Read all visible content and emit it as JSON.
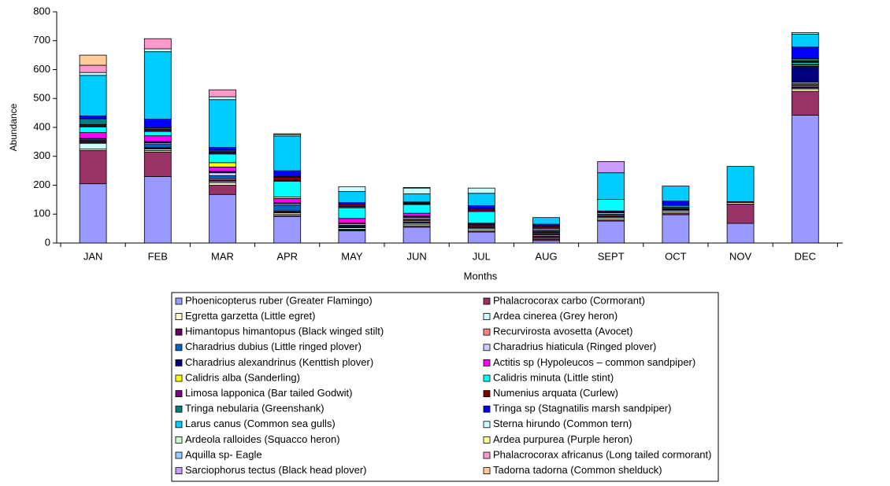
{
  "chart_data": {
    "type": "stacked_bar",
    "x_label": "Months",
    "y_label": "Abundance",
    "categories": [
      "JAN",
      "FEB",
      "MAR",
      "APR",
      "MAY",
      "JUN",
      "JUL",
      "AUG",
      "SEPT",
      "OCT",
      "NOV",
      "DEC"
    ],
    "ylim": [
      0,
      800
    ],
    "yticks": [
      0,
      100,
      200,
      300,
      400,
      500,
      600,
      700,
      800
    ],
    "grid": false,
    "series": [
      {
        "name": "Phoenicopterus ruber (Greater Flamingo)",
        "color": "#9999FF",
        "values": [
          205,
          230,
          168,
          92,
          42,
          55,
          38,
          8,
          76,
          98,
          68,
          442
        ]
      },
      {
        "name": "Phalacrocorax carbo (Cormorant)",
        "color": "#993366",
        "values": [
          115,
          85,
          32,
          3,
          3,
          3,
          3,
          5,
          3,
          5,
          67,
          83
        ]
      },
      {
        "name": "Egretta garzetta (Little egret)",
        "color": "#FFFFCC",
        "values": [
          5,
          5,
          8,
          5,
          3,
          5,
          5,
          3,
          5,
          5,
          5,
          8
        ]
      },
      {
        "name": "Ardea cinerea (Grey heron)",
        "color": "#CCFFFF",
        "values": [
          20,
          5,
          5,
          5,
          5,
          5,
          5,
          3,
          5,
          5,
          0,
          3
        ]
      },
      {
        "name": "Himantopus himantopus (Black winged stilt)",
        "color": "#660066",
        "values": [
          5,
          3,
          5,
          3,
          3,
          5,
          3,
          5,
          3,
          3,
          0,
          5
        ]
      },
      {
        "name": "Recurvirosta avosetta (Avocet)",
        "color": "#FF8080",
        "values": [
          3,
          3,
          5,
          3,
          3,
          5,
          3,
          5,
          3,
          0,
          0,
          5
        ]
      },
      {
        "name": "Charadrius dubius (Little ringed plover)",
        "color": "#0066CC",
        "values": [
          3,
          10,
          10,
          20,
          3,
          5,
          3,
          3,
          5,
          3,
          0,
          5
        ]
      },
      {
        "name": "Charadrius hiaticula (Ringed plover)",
        "color": "#CCCCFF",
        "values": [
          3,
          5,
          10,
          5,
          5,
          5,
          3,
          3,
          5,
          3,
          0,
          5
        ]
      },
      {
        "name": "Charadrius alexandrinus (Kenttish plover)",
        "color": "#000080",
        "values": [
          3,
          5,
          5,
          3,
          3,
          5,
          3,
          5,
          3,
          3,
          0,
          55
        ]
      },
      {
        "name": "Actitis sp (Hypoleucos – common sandpiper)",
        "color": "#FF00FF",
        "values": [
          20,
          20,
          15,
          15,
          15,
          10,
          3,
          5,
          3,
          0,
          0,
          5
        ]
      },
      {
        "name": "Calidris alba (Sanderling)",
        "color": "#FFFF00",
        "values": [
          0,
          0,
          15,
          5,
          0,
          0,
          0,
          0,
          0,
          0,
          0,
          3
        ]
      },
      {
        "name": "Calidris minuta (Little stint)",
        "color": "#00FFFF",
        "values": [
          20,
          15,
          30,
          55,
          37,
          30,
          40,
          5,
          40,
          5,
          0,
          5
        ]
      },
      {
        "name": "Limosa lapponica (Bar tailed Godwit)",
        "color": "#800080",
        "values": [
          3,
          3,
          5,
          3,
          5,
          3,
          5,
          5,
          0,
          0,
          0,
          3
        ]
      },
      {
        "name": "Numenius arquata (Curlew)",
        "color": "#800000",
        "values": [
          5,
          5,
          3,
          10,
          8,
          3,
          5,
          5,
          0,
          0,
          0,
          3
        ]
      },
      {
        "name": "Tringa nebularia (Greenshank)",
        "color": "#008080",
        "values": [
          20,
          5,
          5,
          3,
          0,
          0,
          0,
          0,
          0,
          0,
          0,
          8
        ]
      },
      {
        "name": "Tringa sp (Stagnatilis marsh sandpiper)",
        "color": "#0000FF",
        "values": [
          10,
          30,
          10,
          20,
          5,
          3,
          10,
          5,
          0,
          15,
          3,
          40
        ]
      },
      {
        "name": "Larus canus (Common sea gulls)",
        "color": "#00CCFF",
        "values": [
          140,
          233,
          165,
          120,
          38,
          28,
          43,
          23,
          92,
          52,
          122,
          45
        ]
      },
      {
        "name": "Sterna  hirundo (Common tern)",
        "color": "#CCFFFF",
        "values": [
          10,
          10,
          10,
          5,
          17,
          20,
          18,
          0,
          0,
          0,
          0,
          5
        ]
      },
      {
        "name": "Ardeola ralloides (Squacco heron)",
        "color": "#CCFFCC",
        "values": [
          0,
          0,
          0,
          0,
          0,
          2,
          0,
          0,
          0,
          0,
          0,
          0
        ]
      },
      {
        "name": "Ardea purpurea (Purple heron)",
        "color": "#FFFF99",
        "values": [
          0,
          0,
          0,
          3,
          0,
          0,
          0,
          0,
          0,
          0,
          0,
          0
        ]
      },
      {
        "name": "Aquilla sp- Eagle",
        "color": "#99CCFF",
        "values": [
          0,
          0,
          0,
          0,
          0,
          0,
          0,
          0,
          0,
          0,
          0,
          0
        ]
      },
      {
        "name": "Phalacrocorax africanus (Long tailed cormorant)",
        "color": "#FF99CC",
        "values": [
          25,
          35,
          24,
          0,
          0,
          0,
          0,
          0,
          0,
          0,
          0,
          0
        ]
      },
      {
        "name": "Sarciophorus tectus (Black head plover)",
        "color": "#CC99FF",
        "values": [
          0,
          0,
          0,
          0,
          0,
          0,
          0,
          0,
          39,
          0,
          0,
          0
        ]
      },
      {
        "name": "Tadorna tadorna (Common shelduck)",
        "color": "#FFCC99",
        "values": [
          35,
          0,
          0,
          0,
          0,
          0,
          0,
          0,
          0,
          0,
          0,
          0
        ]
      }
    ]
  }
}
